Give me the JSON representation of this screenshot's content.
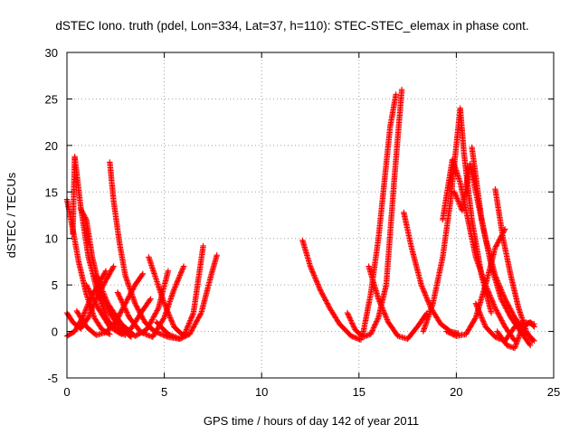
{
  "chart_data": {
    "type": "scatter",
    "title": "dSTEC Iono. truth (pdel, Lon=334, Lat=37, h=110): STEC-STEC_elemax in phase cont.",
    "xlabel": "GPS time / hours of day 142 of year 2011",
    "ylabel": "dSTEC  / TECUs",
    "xlim": [
      0,
      25
    ],
    "ylim": [
      -5,
      30
    ],
    "xticks": [
      0,
      5,
      10,
      15,
      20,
      25
    ],
    "yticks": [
      -5,
      0,
      5,
      10,
      15,
      20,
      25,
      30
    ],
    "grid": true,
    "legend": "none",
    "marker": "+",
    "series_color": "#ff0000",
    "tracks": [
      {
        "t": [
          0.0,
          0.3,
          0.6,
          1.0,
          1.4,
          1.8,
          2.2
        ],
        "v": [
          14.2,
          11.0,
          7.5,
          4.0,
          1.5,
          0.2,
          -0.3
        ]
      },
      {
        "t": [
          0.3,
          0.4,
          0.7,
          1.1,
          1.6,
          2.1,
          2.6,
          3.0
        ],
        "v": [
          10.5,
          18.8,
          13.5,
          8.0,
          4.0,
          1.2,
          0.0,
          -0.4
        ]
      },
      {
        "t": [
          0.7,
          1.0,
          1.3,
          1.7,
          2.2,
          2.7,
          3.3
        ],
        "v": [
          13.2,
          12.0,
          8.0,
          4.5,
          2.0,
          0.4,
          -0.6
        ]
      },
      {
        "t": [
          2.2,
          2.4,
          2.7,
          3.0,
          3.5,
          4.0,
          4.5,
          5.2,
          5.8
        ],
        "v": [
          18.2,
          14.0,
          9.5,
          6.0,
          3.0,
          1.0,
          0.0,
          -0.6,
          -0.8
        ]
      },
      {
        "t": [
          0.0,
          0.3,
          0.7,
          1.1,
          1.5,
          2.0,
          2.4
        ],
        "v": [
          2.0,
          1.0,
          0.3,
          1.5,
          3.5,
          5.5,
          7.0
        ]
      },
      {
        "t": [
          0.0,
          0.4,
          0.8,
          1.2,
          1.6,
          2.0
        ],
        "v": [
          -0.5,
          0.0,
          1.5,
          3.5,
          5.0,
          6.5
        ]
      },
      {
        "t": [
          0.5,
          1.0,
          1.5,
          2.0,
          2.5,
          3.0,
          3.5,
          3.9
        ],
        "v": [
          2.2,
          0.5,
          -0.4,
          -0.1,
          1.0,
          3.0,
          5.0,
          6.2
        ]
      },
      {
        "t": [
          1.0,
          1.6,
          2.2,
          2.8,
          3.3,
          3.8,
          4.3
        ],
        "v": [
          5.0,
          2.5,
          0.5,
          -0.3,
          0.3,
          2.0,
          3.5
        ]
      },
      {
        "t": [
          1.5,
          2.1,
          2.8,
          3.5,
          4.1,
          4.7,
          5.2
        ],
        "v": [
          6.0,
          3.0,
          0.8,
          -0.5,
          0.2,
          2.5,
          6.5
        ]
      },
      {
        "t": [
          2.6,
          3.2,
          3.8,
          4.4,
          5.0,
          5.5,
          6.0
        ],
        "v": [
          4.2,
          1.5,
          -0.1,
          -0.6,
          1.5,
          4.5,
          7.0
        ]
      },
      {
        "t": [
          4.2,
          4.6,
          5.0,
          5.5,
          6.0,
          6.5,
          7.0
        ],
        "v": [
          8.0,
          5.5,
          3.0,
          0.5,
          -0.5,
          2.0,
          9.2
        ]
      },
      {
        "t": [
          4.6,
          5.2,
          5.8,
          6.3,
          6.9,
          7.4,
          7.7
        ],
        "v": [
          1.0,
          -0.3,
          -0.8,
          -0.3,
          2.0,
          6.0,
          8.2
        ]
      },
      {
        "t": [
          12.1,
          12.5,
          13.0,
          13.5,
          14.0,
          14.6,
          15.1
        ],
        "v": [
          9.8,
          7.0,
          4.5,
          2.5,
          0.8,
          -0.5,
          -0.9
        ]
      },
      {
        "t": [
          14.4,
          14.8,
          15.2,
          15.6,
          16.0,
          16.4,
          16.8,
          17.2
        ],
        "v": [
          2.0,
          0.2,
          -0.6,
          -0.3,
          1.5,
          5.0,
          16.0,
          26.0
        ]
      },
      {
        "t": [
          15.2,
          15.6,
          16.0,
          16.3,
          16.6,
          16.9
        ],
        "v": [
          -0.3,
          4.0,
          10.0,
          16.0,
          22.0,
          25.5
        ]
      },
      {
        "t": [
          15.5,
          16.0,
          16.5,
          17.0,
          17.5,
          18.0,
          18.5
        ],
        "v": [
          7.0,
          3.5,
          1.0,
          -0.5,
          -0.8,
          0.5,
          2.0
        ]
      },
      {
        "t": [
          17.3,
          17.7,
          18.2,
          18.7,
          19.2,
          19.7,
          20.1
        ],
        "v": [
          12.8,
          9.0,
          5.0,
          2.5,
          0.8,
          0.0,
          -0.2
        ]
      },
      {
        "t": [
          18.3,
          18.8,
          19.3,
          19.7,
          20.0,
          20.2,
          20.4,
          20.8,
          21.3,
          21.8
        ],
        "v": [
          0.0,
          3.0,
          8.0,
          14.0,
          20.0,
          24.0,
          19.0,
          12.0,
          6.0,
          2.0
        ]
      },
      {
        "t": [
          19.3,
          19.8,
          20.2,
          20.6,
          21.0,
          21.5,
          22.0,
          22.5,
          23.0
        ],
        "v": [
          12.0,
          18.5,
          16.0,
          12.0,
          8.0,
          5.0,
          2.5,
          0.5,
          -1.0
        ]
      },
      {
        "t": [
          19.9,
          20.3,
          20.7,
          21.0,
          21.5,
          22.0,
          22.5,
          23.0,
          23.5,
          24.0
        ],
        "v": [
          15.0,
          13.0,
          18.0,
          15.0,
          10.0,
          6.0,
          3.5,
          1.5,
          0.0,
          -1.0
        ]
      },
      {
        "t": [
          20.8,
          21.3,
          21.8,
          22.3,
          22.8,
          23.3,
          23.8
        ],
        "v": [
          19.8,
          12.0,
          7.0,
          3.5,
          1.5,
          0.0,
          -1.5
        ]
      },
      {
        "t": [
          19.5,
          20.0,
          20.5,
          21.0,
          21.5,
          22.0,
          22.5
        ],
        "v": [
          0.0,
          -0.5,
          -0.3,
          1.5,
          5.0,
          9.0,
          11.0
        ]
      },
      {
        "t": [
          21.0,
          21.5,
          22.0,
          22.5,
          23.0,
          23.5,
          24.0
        ],
        "v": [
          3.0,
          0.5,
          -0.6,
          -1.0,
          0.5,
          1.0,
          0.8
        ]
      },
      {
        "t": [
          22.0,
          22.4,
          22.8,
          23.2,
          23.6,
          23.9
        ],
        "v": [
          15.3,
          10.0,
          6.0,
          2.5,
          0.0,
          -1.0
        ]
      },
      {
        "t": [
          22.1,
          22.6,
          23.0,
          23.4,
          23.8,
          24.0
        ],
        "v": [
          0.0,
          -1.5,
          -1.8,
          0.5,
          1.0,
          0.5
        ]
      }
    ]
  }
}
